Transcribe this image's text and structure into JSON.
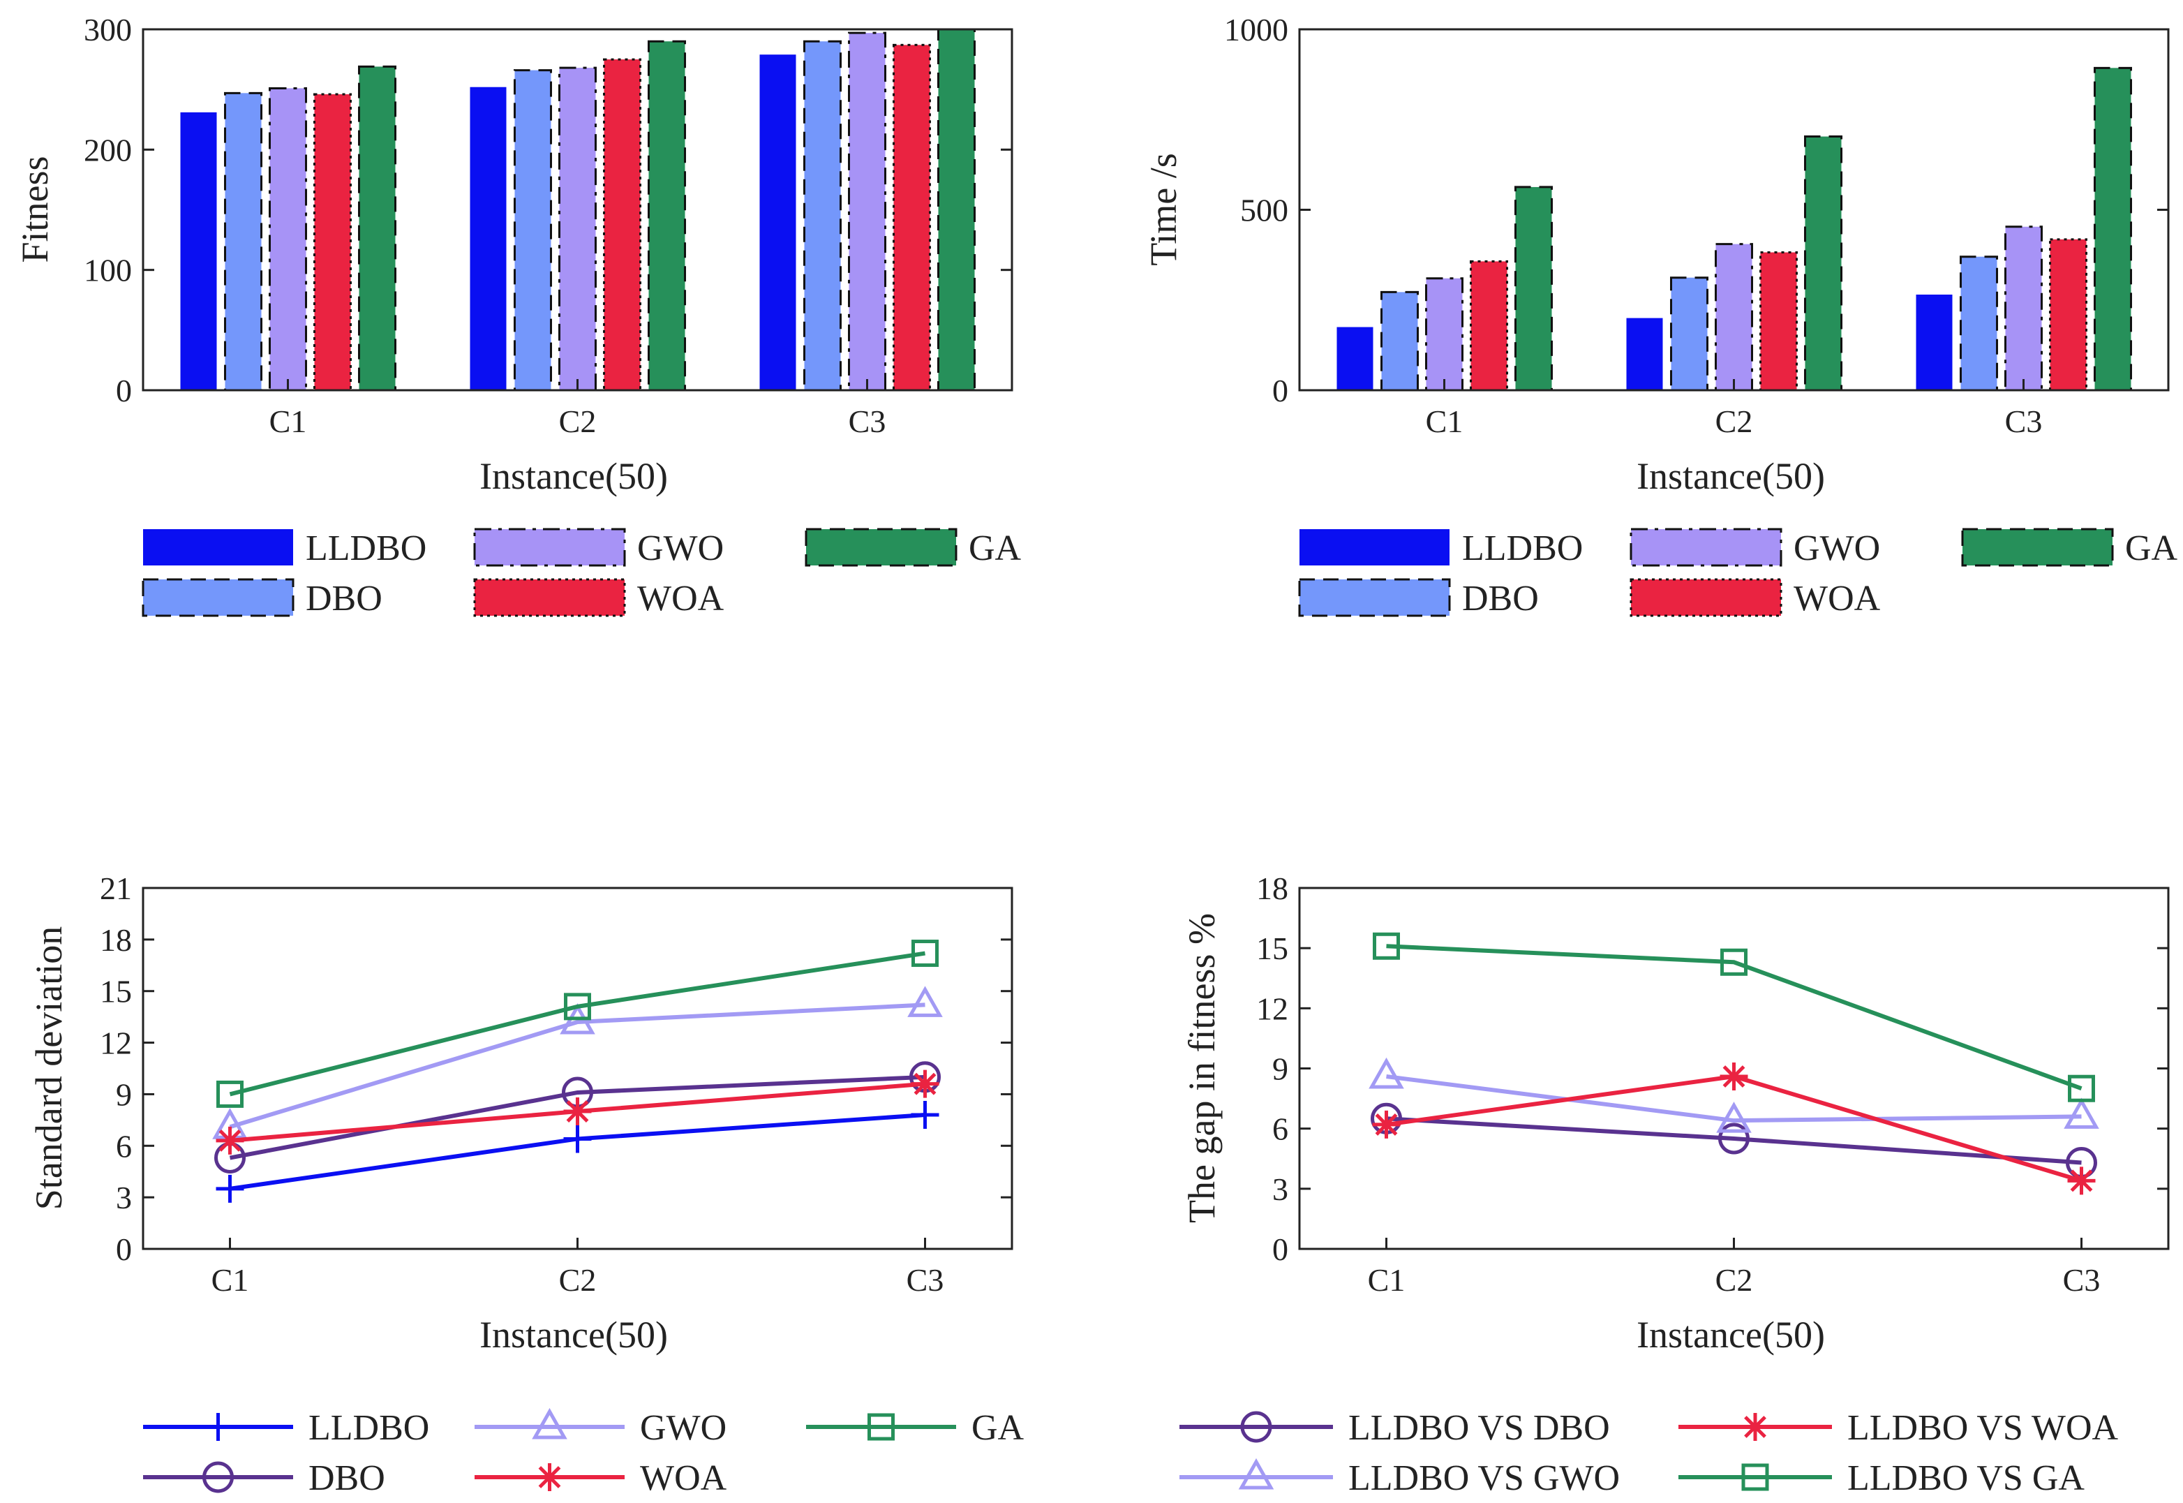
{
  "colors": {
    "LLDBO": "#0a0ff2",
    "DBO": "#7497fb",
    "GWO": "#a793f6",
    "WOA": "#ea2341",
    "GA": "#26905a",
    "DBO_line": "#59328f",
    "GWO_line": "#a29af4",
    "axis": "#222222"
  },
  "chart_data": [
    {
      "id": "fitness",
      "type": "bar",
      "title": "",
      "xlabel": "Instance(50)",
      "ylabel": "Fitness",
      "ylim": [
        0,
        300
      ],
      "yticks": [
        "0",
        "100",
        "200",
        "300"
      ],
      "categories": [
        "C1",
        "C2",
        "C3"
      ],
      "series": [
        {
          "name": "LLDBO",
          "color": "#0a0ff2",
          "border": "solid",
          "values": [
            231,
            252,
            279
          ]
        },
        {
          "name": "DBO",
          "color": "#7497fb",
          "border": "dashed",
          "values": [
            247,
            266,
            290
          ]
        },
        {
          "name": "GWO",
          "color": "#a793f6",
          "border": "dashdot",
          "values": [
            251,
            268,
            297
          ]
        },
        {
          "name": "WOA",
          "color": "#ea2341",
          "border": "dotted",
          "values": [
            246,
            275,
            287
          ]
        },
        {
          "name": "GA",
          "color": "#26905a",
          "border": "dashed",
          "values": [
            269,
            290,
            300
          ]
        }
      ],
      "legend": "bottom"
    },
    {
      "id": "time",
      "type": "bar",
      "title": "",
      "xlabel": "Instance(50)",
      "ylabel": "Time /s",
      "ylim": [
        0,
        1000
      ],
      "yticks": [
        "0",
        "500",
        "1000"
      ],
      "categories": [
        "C1",
        "C2",
        "C3"
      ],
      "series": [
        {
          "name": "LLDBO",
          "color": "#0a0ff2",
          "border": "solid",
          "values": [
            175,
            200,
            265
          ]
        },
        {
          "name": "DBO",
          "color": "#7497fb",
          "border": "dashed",
          "values": [
            272,
            312,
            370
          ]
        },
        {
          "name": "GWO",
          "color": "#a793f6",
          "border": "dashdot",
          "values": [
            310,
            405,
            453
          ]
        },
        {
          "name": "WOA",
          "color": "#ea2341",
          "border": "dotted",
          "values": [
            357,
            382,
            418
          ]
        },
        {
          "name": "GA",
          "color": "#26905a",
          "border": "dashed",
          "values": [
            563,
            703,
            893
          ]
        }
      ],
      "legend": "bottom"
    },
    {
      "id": "stddev",
      "type": "line",
      "title": "",
      "xlabel": "Instance(50)",
      "ylabel": "Standard deviation",
      "ylim": [
        0,
        21
      ],
      "yticks": [
        "0",
        "3",
        "6",
        "9",
        "12",
        "15",
        "18",
        "21"
      ],
      "categories": [
        "C1",
        "C2",
        "C3"
      ],
      "series": [
        {
          "name": "LLDBO",
          "color": "#0a0ff2",
          "marker": "plus",
          "values": [
            3.5,
            6.4,
            7.8
          ]
        },
        {
          "name": "DBO",
          "color": "#59328f",
          "marker": "circle",
          "values": [
            5.3,
            9.1,
            10.0
          ]
        },
        {
          "name": "GWO",
          "color": "#a29af4",
          "marker": "triangle",
          "values": [
            7.1,
            13.2,
            14.2
          ]
        },
        {
          "name": "WOA",
          "color": "#ea2341",
          "marker": "star",
          "values": [
            6.3,
            8.0,
            9.6
          ]
        },
        {
          "name": "GA",
          "color": "#26905a",
          "marker": "square",
          "values": [
            9.0,
            14.1,
            17.2
          ]
        }
      ],
      "legend": "bottom"
    },
    {
      "id": "gap",
      "type": "line",
      "title": "",
      "xlabel": "Instance(50)",
      "ylabel": "The gap in fitness %",
      "ylim": [
        0,
        18
      ],
      "yticks": [
        "0",
        "3",
        "6",
        "9",
        "12",
        "15",
        "18"
      ],
      "categories": [
        "C1",
        "C2",
        "C3"
      ],
      "series": [
        {
          "name": "LLDBO VS DBO",
          "color": "#59328f",
          "marker": "circle",
          "values": [
            6.5,
            5.5,
            4.3
          ]
        },
        {
          "name": "LLDBO VS GWO",
          "color": "#a29af4",
          "marker": "triangle",
          "values": [
            8.6,
            6.4,
            6.6
          ]
        },
        {
          "name": "LLDBO VS WOA",
          "color": "#ea2341",
          "marker": "star",
          "values": [
            6.2,
            8.6,
            3.4
          ]
        },
        {
          "name": "LLDBO VS GA",
          "color": "#26905a",
          "marker": "square",
          "values": [
            15.1,
            14.3,
            8.0
          ]
        }
      ],
      "legend": "bottom"
    }
  ]
}
